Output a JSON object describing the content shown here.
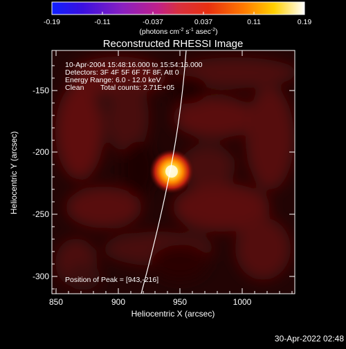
{
  "colorbar": {
    "ticks": [
      "-0.19",
      "-0.11",
      "-0.037",
      "0.037",
      "0.11",
      "0.19"
    ],
    "units_main": "(photons cm",
    "units_exp1": "-2",
    "units_mid": " s",
    "units_exp2": "-1",
    "units_tail": " asec",
    "units_exp3": "-2",
    "units_close": ")"
  },
  "plot": {
    "title": "Reconstructed RHESSI Image",
    "xlabel": "Heliocentric X (arcsec)",
    "ylabel": "Heliocentric Y (arcsec)",
    "x_ticks": [
      "850",
      "900",
      "950",
      "1000"
    ],
    "y_ticks": [
      "-150",
      "-200",
      "-250",
      "-300"
    ],
    "info": {
      "line1": "10-Apr-2004 15:48:16.000 to 15:54:16.000",
      "line2": "Detectors: 3F 4F 5F 6F 7F 8F, Att 0",
      "line3": "Energy Range: 6.0 - 12.0 keV",
      "line4_method": "Clean",
      "line4_counts": "Total counts: 2.71E+05"
    },
    "peak_label": "Position of Peak = [943,-216]"
  },
  "footer": {
    "timestamp": "30-Apr-2022 02:48"
  }
}
